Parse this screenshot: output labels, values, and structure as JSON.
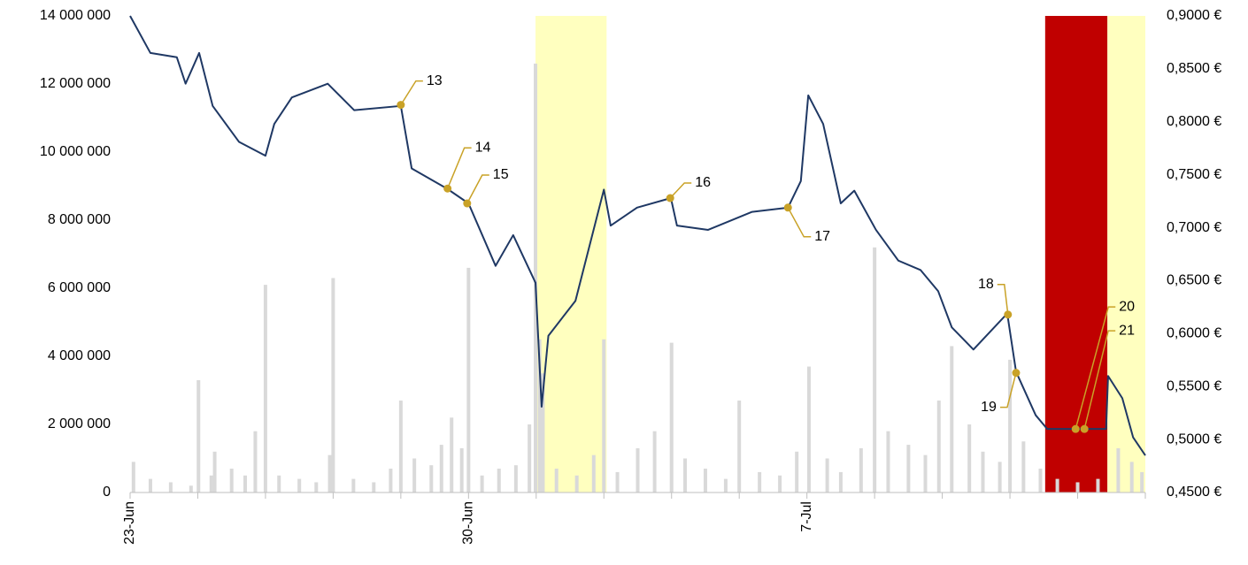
{
  "chart_data": {
    "type": "bar_line",
    "xlim": [
      0,
      15
    ],
    "xticks": [
      {
        "value": 0,
        "label": "23-Jun"
      },
      {
        "value": 5,
        "label": "30-Jun"
      },
      {
        "value": 10,
        "label": "7-Jul"
      }
    ],
    "xticks_minor": [
      0,
      1,
      2,
      3,
      4,
      5,
      6,
      7,
      8,
      9,
      10,
      11,
      12,
      13,
      14,
      15
    ],
    "ylim": [
      0,
      14000000
    ],
    "yticks": [
      {
        "value": 0,
        "label": "0"
      },
      {
        "value": 2000000,
        "label": "2 000 000"
      },
      {
        "value": 4000000,
        "label": "4 000 000"
      },
      {
        "value": 6000000,
        "label": "6 000 000"
      },
      {
        "value": 8000000,
        "label": "8 000 000"
      },
      {
        "value": 10000000,
        "label": "10 000 000"
      },
      {
        "value": 12000000,
        "label": "12 000 000"
      },
      {
        "value": 14000000,
        "label": "14 000 000"
      }
    ],
    "y2lim": [
      0.45,
      0.9
    ],
    "y2ticks": [
      {
        "value": 0.45,
        "label": "0,4500 €"
      },
      {
        "value": 0.5,
        "label": "0,5000 €"
      },
      {
        "value": 0.55,
        "label": "0,5500 €"
      },
      {
        "value": 0.6,
        "label": "0,6000 €"
      },
      {
        "value": 0.65,
        "label": "0,6500 €"
      },
      {
        "value": 0.7,
        "label": "0,7000 €"
      },
      {
        "value": 0.75,
        "label": "0,7500 €"
      },
      {
        "value": 0.8,
        "label": "0,8000 €"
      },
      {
        "value": 0.85,
        "label": "0,8500 €"
      },
      {
        "value": 0.9,
        "label": "0,9000 €"
      }
    ],
    "highlights": [
      {
        "from": 5.99,
        "to": 7.04,
        "color": "#ffffbf"
      },
      {
        "from": 13.52,
        "to": 14.44,
        "color": "#c00000"
      },
      {
        "from": 14.44,
        "to": 15,
        "color": "#ffffbf"
      }
    ],
    "series": [
      {
        "type": "bar",
        "axis": "y",
        "color": "#d9d9d9",
        "x": [
          0.05,
          0.3,
          0.6,
          0.9,
          1.01,
          1.2,
          1.25,
          1.5,
          1.7,
          1.85,
          2.0,
          2.2,
          2.5,
          2.75,
          2.95,
          3.0,
          3.3,
          3.6,
          3.85,
          4.0,
          4.2,
          4.45,
          4.6,
          4.75,
          4.9,
          5.0,
          5.2,
          5.45,
          5.7,
          5.9,
          5.99,
          6.05,
          6.1,
          6.3,
          6.6,
          6.85,
          7.0,
          7.2,
          7.5,
          7.75,
          8.0,
          8.2,
          8.5,
          8.8,
          9.0,
          9.3,
          9.6,
          9.85,
          10.03,
          10.3,
          10.5,
          10.8,
          11.0,
          11.2,
          11.5,
          11.75,
          11.95,
          12.14,
          12.4,
          12.6,
          12.85,
          13.0,
          13.2,
          13.45,
          13.7,
          14.0,
          14.3,
          14.6,
          14.8,
          14.95
        ],
        "values": [
          900000,
          400000,
          300000,
          200000,
          3300000,
          500000,
          1200000,
          700000,
          500000,
          1800000,
          6100000,
          500000,
          400000,
          300000,
          1100000,
          6300000,
          400000,
          300000,
          700000,
          2700000,
          1000000,
          800000,
          1400000,
          2200000,
          1300000,
          6600000,
          500000,
          700000,
          800000,
          2000000,
          12600000,
          4500000,
          3500000,
          700000,
          500000,
          1100000,
          4500000,
          600000,
          1300000,
          1800000,
          4400000,
          1000000,
          700000,
          400000,
          2700000,
          600000,
          500000,
          1200000,
          3700000,
          1000000,
          600000,
          1300000,
          7200000,
          1800000,
          1400000,
          1100000,
          2700000,
          4300000,
          2000000,
          1200000,
          900000,
          3900000,
          1500000,
          700000,
          400000,
          300000,
          400000,
          1300000,
          900000,
          600000
        ]
      },
      {
        "type": "line",
        "axis": "y2",
        "color": "#1f3864",
        "x": [
          0,
          0.3,
          0.69,
          0.82,
          1.02,
          1.22,
          1.61,
          2.0,
          2.13,
          2.39,
          2.92,
          3.31,
          4.0,
          4.16,
          4.68,
          5.0,
          5.4,
          5.66,
          5.99,
          6.08,
          6.18,
          6.58,
          7.0,
          7.1,
          7.49,
          7.99,
          8.08,
          8.54,
          9.19,
          9.72,
          9.91,
          10.02,
          10.24,
          10.5,
          10.7,
          11.02,
          11.35,
          11.68,
          11.94,
          12.14,
          12.46,
          12.96,
          13.09,
          13.38,
          13.55,
          14.42,
          14.45,
          14.66,
          14.82,
          15.0
        ],
        "values": [
          0.9,
          0.865,
          0.861,
          0.836,
          0.865,
          0.815,
          0.781,
          0.768,
          0.798,
          0.823,
          0.836,
          0.811,
          0.815,
          0.756,
          0.737,
          0.723,
          0.664,
          0.693,
          0.648,
          0.531,
          0.598,
          0.631,
          0.736,
          0.702,
          0.719,
          0.728,
          0.702,
          0.698,
          0.715,
          0.719,
          0.744,
          0.825,
          0.798,
          0.723,
          0.735,
          0.698,
          0.669,
          0.66,
          0.64,
          0.606,
          0.585,
          0.619,
          0.564,
          0.523,
          0.51,
          0.51,
          0.56,
          0.539,
          0.502,
          0.485
        ]
      }
    ],
    "annotation_color": "#c9a227",
    "annotations": [
      {
        "label": "13",
        "x": 4.0,
        "y": 0.816
      },
      {
        "label": "14",
        "x": 4.69,
        "y": 0.737
      },
      {
        "label": "15",
        "x": 4.98,
        "y": 0.723
      },
      {
        "label": "16",
        "x": 7.98,
        "y": 0.728
      },
      {
        "label": "17",
        "x": 9.72,
        "y": 0.719
      },
      {
        "label": "18",
        "x": 12.97,
        "y": 0.618
      },
      {
        "label": "19",
        "x": 13.09,
        "y": 0.563
      },
      {
        "label": "20",
        "x": 13.97,
        "y": 0.51
      },
      {
        "label": "21",
        "x": 14.1,
        "y": 0.51
      }
    ]
  }
}
